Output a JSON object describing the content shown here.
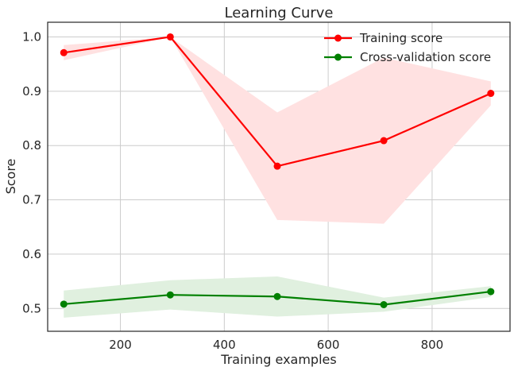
{
  "chart_data": {
    "type": "line",
    "title": "Learning Curve",
    "xlabel": "Training examples",
    "ylabel": "Score",
    "xlim": [
      60,
      950
    ],
    "ylim": [
      0.458,
      1.027
    ],
    "xticks": [
      200,
      400,
      600,
      800
    ],
    "yticks": [
      0.5,
      0.6,
      0.7,
      0.8,
      0.9,
      1.0
    ],
    "xtick_labels": [
      "200",
      "400",
      "600",
      "800"
    ],
    "ytick_labels": [
      "0.5",
      "0.6",
      "0.7",
      "0.8",
      "0.9",
      "1.0"
    ],
    "grid": true,
    "legend_position": "top-right",
    "x": [
      91,
      296,
      502,
      707,
      913
    ],
    "series": [
      {
        "name": "Training score",
        "color": "#ff0000",
        "band_color": "#ffe1e1",
        "values": [
          0.971,
          1.0,
          0.762,
          0.809,
          0.896
        ],
        "band_upper": [
          0.985,
          1.0,
          0.861,
          0.962,
          0.918
        ],
        "band_lower": [
          0.957,
          1.0,
          0.663,
          0.656,
          0.874
        ]
      },
      {
        "name": "Cross-validation score",
        "color": "#008000",
        "band_color": "#e0f0df",
        "values": [
          0.508,
          0.525,
          0.522,
          0.507,
          0.531
        ],
        "band_upper": [
          0.533,
          0.552,
          0.559,
          0.52,
          0.541
        ],
        "band_lower": [
          0.483,
          0.498,
          0.485,
          0.494,
          0.521
        ]
      }
    ]
  }
}
